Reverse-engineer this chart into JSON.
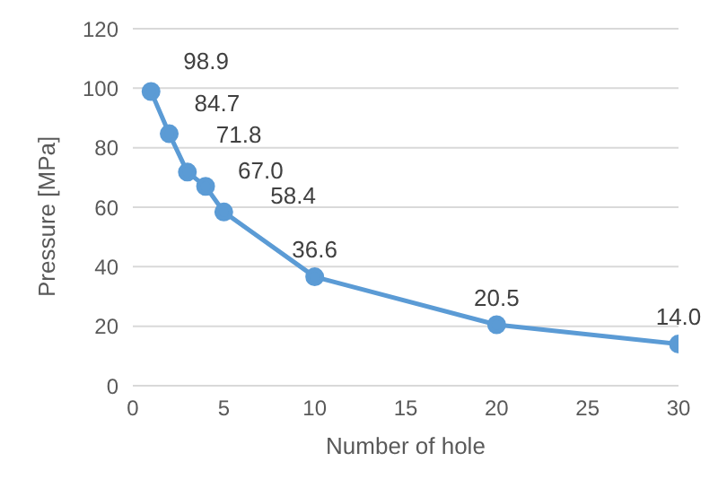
{
  "chart_data": {
    "type": "line",
    "xlabel": "Number of hole",
    "ylabel": "Pressure [MPa]",
    "x": [
      1,
      2,
      3,
      4,
      5,
      10,
      20,
      30
    ],
    "series": [
      {
        "color": "#5b9bd5",
        "values": [
          98.9,
          84.7,
          71.8,
          67.0,
          58.4,
          36.6,
          20.5,
          14.0
        ],
        "value_labels": [
          "98.9",
          "84.7",
          "71.8",
          "67.0",
          "58.4",
          "36.6",
          "20.5",
          "14.0"
        ]
      }
    ],
    "xlim": [
      0,
      30
    ],
    "xticks": [
      0,
      5,
      10,
      15,
      20,
      25,
      30
    ],
    "ylim": [
      0,
      120
    ],
    "yticks": [
      0,
      20,
      40,
      60,
      80,
      100,
      120
    ],
    "grid": "y",
    "legend": false,
    "marker": "circle",
    "line_style": "solid"
  }
}
